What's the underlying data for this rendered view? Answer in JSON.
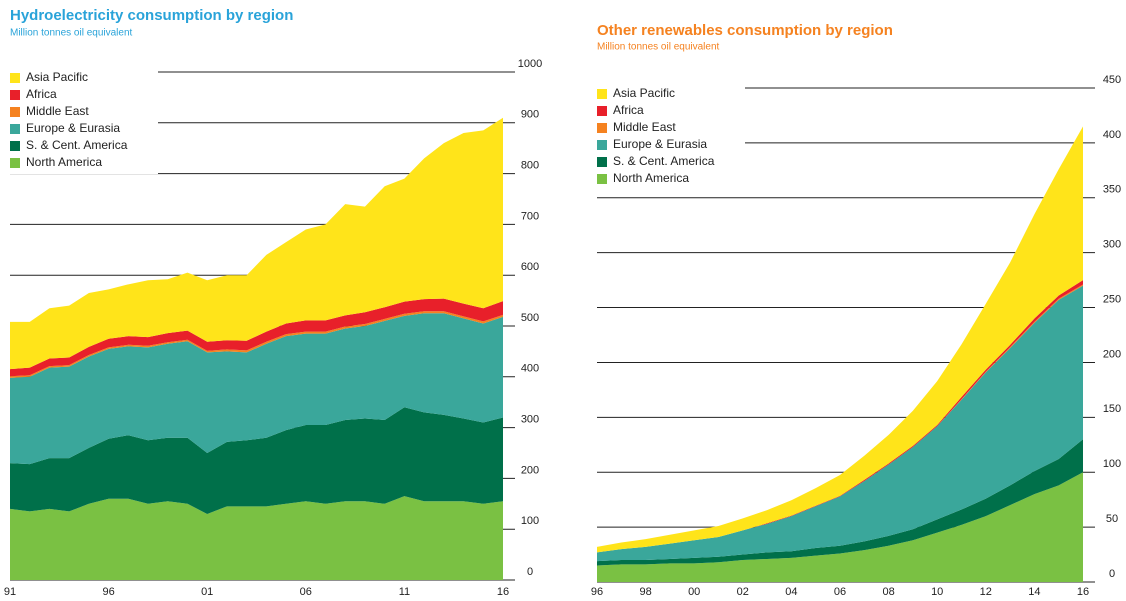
{
  "chart_data": [
    {
      "type": "stacked_area",
      "title": "Hydroelectricity consumption by region",
      "subtitle": "Million tonnes oil equivalent",
      "title_color": "#29a3d9",
      "categories": [
        "91",
        null,
        null,
        null,
        null,
        "96",
        null,
        null,
        null,
        null,
        "01",
        null,
        null,
        null,
        null,
        "06",
        null,
        null,
        null,
        null,
        "11",
        null,
        null,
        null,
        null,
        "16"
      ],
      "ylim": [
        0,
        1000
      ],
      "yticks": [
        0,
        100,
        200,
        300,
        400,
        500,
        600,
        700,
        800,
        900,
        1000
      ],
      "grid": true,
      "legend": "upper-left",
      "series": [
        {
          "name": "Asia Pacific",
          "color": "#ffe41a",
          "values": [
            93,
            90,
            99,
            102,
            106,
            97,
            102,
            112,
            106,
            114,
            121,
            128,
            129,
            151,
            160,
            179,
            189,
            219,
            208,
            238,
            242,
            277,
            306,
            336,
            350,
            361
          ]
        },
        {
          "name": "Africa",
          "color": "#e8202a",
          "values": [
            14,
            15,
            15,
            15,
            16,
            17,
            17,
            17,
            18,
            18,
            18,
            18,
            19,
            20,
            21,
            22,
            22,
            22,
            23,
            23,
            24,
            24,
            25,
            25,
            26,
            27
          ]
        },
        {
          "name": "Middle East",
          "color": "#f58220",
          "values": [
            3,
            3,
            3,
            3,
            3,
            3,
            3,
            3,
            3,
            3,
            3,
            4,
            4,
            4,
            4,
            4,
            4,
            4,
            4,
            4,
            4,
            4,
            4,
            4,
            4,
            4
          ]
        },
        {
          "name": "Europe & Eurasia",
          "color": "#3aa79b",
          "values": [
            168,
            172,
            178,
            180,
            180,
            177,
            175,
            183,
            185,
            190,
            198,
            178,
            173,
            185,
            185,
            180,
            180,
            180,
            182,
            195,
            180,
            195,
            200,
            197,
            195,
            198
          ]
        },
        {
          "name": "S. & Cent. America",
          "color": "#00704a",
          "values": [
            90,
            93,
            100,
            105,
            110,
            118,
            125,
            125,
            125,
            130,
            120,
            127,
            130,
            135,
            145,
            150,
            155,
            160,
            163,
            165,
            175,
            175,
            170,
            163,
            160,
            165
          ]
        },
        {
          "name": "North America",
          "color": "#7ac143",
          "values": [
            140,
            135,
            140,
            135,
            150,
            160,
            160,
            150,
            155,
            150,
            130,
            145,
            145,
            145,
            150,
            155,
            150,
            155,
            155,
            150,
            165,
            155,
            155,
            155,
            150,
            155
          ]
        }
      ]
    },
    {
      "type": "stacked_area",
      "title": "Other renewables consumption by region",
      "subtitle": "Million tonnes oil equivalent",
      "title_color": "#f58220",
      "categories": [
        "96",
        null,
        "98",
        null,
        "00",
        null,
        "02",
        null,
        "04",
        null,
        "06",
        null,
        "08",
        null,
        "10",
        null,
        "12",
        null,
        "14",
        null,
        "16"
      ],
      "ylim": [
        0,
        450
      ],
      "yticks": [
        0,
        50,
        100,
        150,
        200,
        250,
        300,
        350,
        400,
        450
      ],
      "grid": true,
      "legend": "upper-left",
      "series": [
        {
          "name": "Asia Pacific",
          "color": "#ffe41a",
          "values": [
            5,
            6,
            7,
            8,
            9,
            10,
            11,
            12,
            14,
            16,
            19,
            22,
            26,
            32,
            40,
            48,
            60,
            75,
            95,
            115,
            140
          ]
        },
        {
          "name": "Africa",
          "color": "#e8202a",
          "values": [
            0,
            0,
            0,
            0,
            0,
            0,
            0,
            0.5,
            0.5,
            0.5,
            0.5,
            1,
            1,
            1,
            1,
            2,
            2,
            2,
            3,
            3,
            4
          ]
        },
        {
          "name": "Middle East",
          "color": "#f58220",
          "values": [
            0,
            0,
            0,
            0,
            0,
            0,
            0,
            0,
            0,
            0,
            0,
            0,
            0,
            0,
            0,
            0.5,
            0.5,
            1,
            1,
            1,
            1
          ]
        },
        {
          "name": "Europe & Eurasia",
          "color": "#3aa79b",
          "values": [
            8,
            10,
            12,
            14,
            16,
            18,
            22,
            26,
            32,
            38,
            45,
            55,
            65,
            75,
            85,
            100,
            115,
            125,
            135,
            145,
            140
          ]
        },
        {
          "name": "S. & Cent. America",
          "color": "#00704a",
          "values": [
            4,
            4,
            4,
            4,
            5,
            5,
            5,
            6,
            6,
            7,
            7,
            8,
            9,
            10,
            12,
            14,
            16,
            18,
            21,
            24,
            30
          ]
        },
        {
          "name": "North America",
          "color": "#7ac143",
          "values": [
            15,
            16,
            16,
            17,
            17,
            18,
            20,
            21,
            22,
            24,
            26,
            29,
            33,
            38,
            45,
            52,
            60,
            70,
            80,
            88,
            100
          ]
        }
      ]
    }
  ]
}
